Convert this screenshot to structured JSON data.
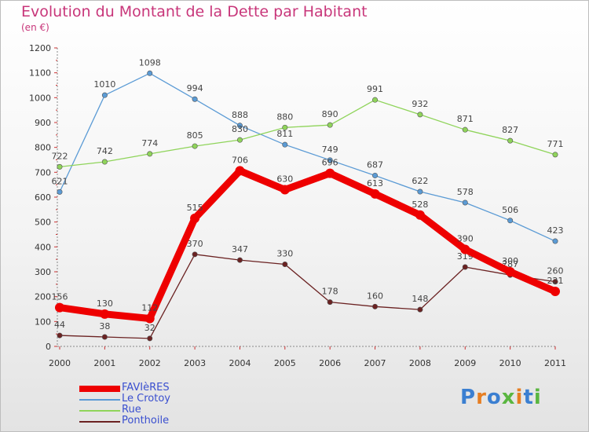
{
  "title": "Evolution du Montant de la Dette par Habitant",
  "unit": "(en €)",
  "brand": {
    "chars": [
      "P",
      "r",
      "o",
      "x",
      "i",
      "t",
      "i"
    ],
    "colors": [
      "#3b7fd1",
      "#e67e22",
      "#3b7fd1",
      "#5ab640",
      "#e67e22",
      "#3b7fd1",
      "#5ab640"
    ]
  },
  "chart_data": {
    "type": "line",
    "title": "Evolution du Montant de la Dette par Habitant",
    "ylabel": "(en €)",
    "x": [
      "2000",
      "2001",
      "2002",
      "2003",
      "2004",
      "2005",
      "2006",
      "2007",
      "2008",
      "2009",
      "2010",
      "2011"
    ],
    "ylim": [
      0,
      1200
    ],
    "yticks": [
      0,
      100,
      200,
      300,
      400,
      500,
      600,
      700,
      800,
      900,
      1000,
      1100,
      1200
    ],
    "grid": false,
    "legend": "bottom-left",
    "series": [
      {
        "name": "Le Crotoy",
        "color": "#5b9bd5",
        "values": [
          621,
          1010,
          1098,
          994,
          888,
          811,
          749,
          687,
          622,
          578,
          506,
          423
        ]
      },
      {
        "name": "Rue",
        "color": "#8fd45a",
        "values": [
          722,
          742,
          774,
          805,
          830,
          880,
          890,
          991,
          932,
          871,
          827,
          771
        ]
      },
      {
        "name": "Ponthoile",
        "color": "#6b2222",
        "values": [
          44,
          38,
          32,
          370,
          347,
          330,
          178,
          160,
          148,
          319,
          287,
          260
        ]
      },
      {
        "name": "FAVIèRES",
        "color": "#ee0000",
        "values": [
          156,
          130,
          112,
          515,
          706,
          630,
          696,
          613,
          528,
          390,
          300,
          221
        ]
      }
    ]
  }
}
